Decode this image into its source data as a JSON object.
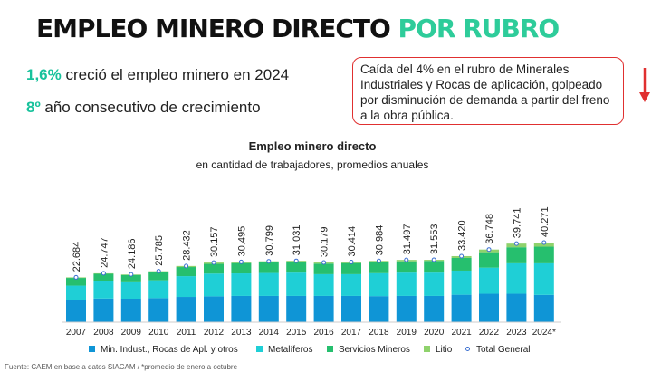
{
  "header": {
    "title_main": "EMPLEO MINERO DIRECTO",
    "title_accent": "POR RUBRO"
  },
  "stats": {
    "stat1_value": "1,6%",
    "stat1_text": " creció el empleo minero en 2024",
    "stat2_value": "8º",
    "stat2_text": " año consecutivo de crecimiento"
  },
  "callout": {
    "text": "Caída del 4% en el rubro de Minerales Industriales y Rocas de aplicación, golpeado por disminución de demanda a partir del freno a la obra pública."
  },
  "footer": {
    "source": "Fuente: CAEM en base a datos SIACAM / *promedio de enero a octubre"
  },
  "colors": {
    "title_accent": "#2ecc9a",
    "stat_highlight": "#18c29c",
    "callout_border": "#e03030",
    "arrow": "#e03030"
  },
  "chart_data": {
    "type": "bar",
    "stacked": true,
    "title": "Empleo minero directo",
    "subtitle": "en cantidad de trabajadores, promedios anuales",
    "categories": [
      "2007",
      "2008",
      "2009",
      "2010",
      "2011",
      "2012",
      "2013",
      "2014",
      "2015",
      "2016",
      "2017",
      "2018",
      "2019",
      "2020",
      "2021",
      "2022",
      "2023",
      "2024*"
    ],
    "series": [
      {
        "name": "Min. Indust., Rocas de Apl. y otros",
        "color": "#0f95d6",
        "values": [
          11300,
          12000,
          11900,
          12200,
          12800,
          13100,
          13300,
          13300,
          13300,
          13300,
          13300,
          13200,
          13300,
          13300,
          13900,
          14400,
          14400,
          13800
        ]
      },
      {
        "name": "Metalíferos",
        "color": "#1fcfd6",
        "values": [
          7200,
          8600,
          8300,
          9000,
          10500,
          11500,
          11400,
          11600,
          11800,
          11000,
          11000,
          11600,
          11800,
          11800,
          12200,
          13200,
          15400,
          16000
        ]
      },
      {
        "name": "Servicios Mineros",
        "color": "#26bf6e",
        "values": [
          3900,
          3900,
          3700,
          4300,
          4600,
          4900,
          5200,
          5300,
          5400,
          5300,
          5600,
          5600,
          5700,
          5900,
          6400,
          7800,
          8100,
          8400
        ]
      },
      {
        "name": "Litio",
        "color": "#8fd26c",
        "values": [
          284,
          247,
          286,
          285,
          532,
          657,
          595,
          599,
          531,
          579,
          514,
          584,
          697,
          553,
          920,
          1348,
          1841,
          2071
        ]
      }
    ],
    "total": {
      "name": "Total General",
      "labels": [
        "22.684",
        "24.747",
        "24.186",
        "25.785",
        "28.432",
        "30.157",
        "30.495",
        "30.799",
        "31.031",
        "30.179",
        "30.414",
        "30.984",
        "31.497",
        "31.553",
        "33.420",
        "36.748",
        "39.741",
        "40.271"
      ]
    },
    "ylim": [
      0,
      45000
    ],
    "grid": false,
    "legend_position": "bottom"
  }
}
